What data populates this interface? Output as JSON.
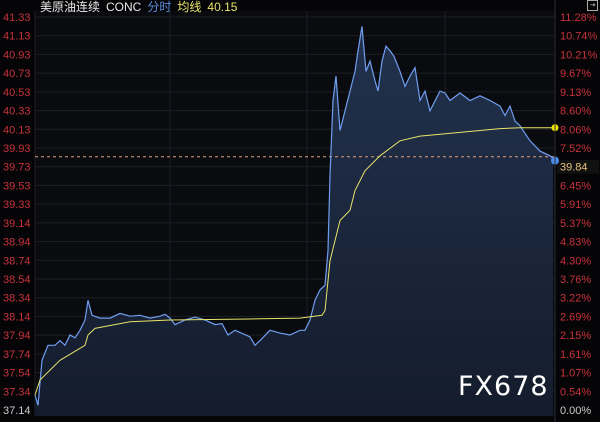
{
  "header": {
    "name": "美原油连续",
    "code": "CONC",
    "mode": "分时",
    "avg_label": "均线",
    "avg_value": "40.15"
  },
  "watermark": "FX678",
  "colors": {
    "price_line": "#6f9ef0",
    "avg_line": "#e8e36a",
    "axis_red": "#c8323c",
    "last_price": "#e6c27a",
    "ref_line": "#e0a080"
  },
  "chart_data": {
    "type": "line",
    "title": "",
    "xlabel": "",
    "ylabel": "",
    "ylim": [
      37.14,
      41.33
    ],
    "grid": true,
    "left_ticks": [
      "41.33",
      "41.13",
      "40.93",
      "40.73",
      "40.53",
      "40.33",
      "40.13",
      "39.93",
      "39.73",
      "39.53",
      "39.33",
      "39.14",
      "38.94",
      "38.74",
      "38.54",
      "38.34",
      "38.14",
      "37.94",
      "37.74",
      "37.54",
      "37.34",
      "37.14"
    ],
    "right_ticks": [
      "11.28%",
      "10.74%",
      "10.21%",
      "9.67%",
      "9.13%",
      "8.60%",
      "8.06%",
      "7.52%",
      "39.84",
      "6.45%",
      "5.91%",
      "5.37%",
      "4.83%",
      "4.30%",
      "3.76%",
      "3.22%",
      "2.69%",
      "2.15%",
      "1.61%",
      "1.07%",
      "0.54%",
      "0.00%"
    ],
    "last_price": 39.84,
    "x_range": [
      0,
      520
    ],
    "series": [
      {
        "key": "price",
        "points": [
          [
            0,
            37.3
          ],
          [
            3,
            37.19
          ],
          [
            7,
            37.67
          ],
          [
            13,
            37.83
          ],
          [
            20,
            37.83
          ],
          [
            25,
            37.88
          ],
          [
            30,
            37.83
          ],
          [
            35,
            37.94
          ],
          [
            40,
            37.91
          ],
          [
            45,
            37.99
          ],
          [
            50,
            38.1
          ],
          [
            53,
            38.31
          ],
          [
            57,
            38.15
          ],
          [
            65,
            38.12
          ],
          [
            75,
            38.12
          ],
          [
            85,
            38.17
          ],
          [
            95,
            38.14
          ],
          [
            105,
            38.15
          ],
          [
            115,
            38.12
          ],
          [
            125,
            38.14
          ],
          [
            130,
            38.16
          ],
          [
            135,
            38.12
          ],
          [
            140,
            38.05
          ],
          [
            150,
            38.1
          ],
          [
            160,
            38.13
          ],
          [
            170,
            38.1
          ],
          [
            180,
            38.05
          ],
          [
            187,
            38.06
          ],
          [
            193,
            37.94
          ],
          [
            200,
            37.99
          ],
          [
            215,
            37.92
          ],
          [
            220,
            37.83
          ],
          [
            225,
            37.88
          ],
          [
            235,
            37.99
          ],
          [
            245,
            37.96
          ],
          [
            255,
            37.94
          ],
          [
            265,
            37.99
          ],
          [
            270,
            37.99
          ],
          [
            275,
            38.1
          ],
          [
            280,
            38.31
          ],
          [
            285,
            38.42
          ],
          [
            290,
            38.47
          ],
          [
            293,
            38.84
          ],
          [
            295,
            39.64
          ],
          [
            298,
            40.44
          ],
          [
            301,
            40.7
          ],
          [
            305,
            40.12
          ],
          [
            310,
            40.33
          ],
          [
            315,
            40.54
          ],
          [
            320,
            40.75
          ],
          [
            323,
            40.97
          ],
          [
            327,
            41.23
          ],
          [
            331,
            40.75
          ],
          [
            335,
            40.86
          ],
          [
            340,
            40.65
          ],
          [
            343,
            40.54
          ],
          [
            347,
            40.86
          ],
          [
            351,
            41.02
          ],
          [
            355,
            40.97
          ],
          [
            359,
            40.91
          ],
          [
            365,
            40.75
          ],
          [
            370,
            40.59
          ],
          [
            375,
            40.7
          ],
          [
            380,
            40.79
          ],
          [
            385,
            40.44
          ],
          [
            390,
            40.54
          ],
          [
            395,
            40.33
          ],
          [
            405,
            40.54
          ],
          [
            410,
            40.52
          ],
          [
            415,
            40.44
          ],
          [
            425,
            40.52
          ],
          [
            435,
            40.44
          ],
          [
            445,
            40.49
          ],
          [
            455,
            40.44
          ],
          [
            465,
            40.38
          ],
          [
            470,
            40.28
          ],
          [
            475,
            40.38
          ],
          [
            480,
            40.22
          ],
          [
            485,
            40.17
          ],
          [
            495,
            40.01
          ],
          [
            505,
            39.9
          ],
          [
            515,
            39.85
          ],
          [
            518,
            39.82
          ]
        ]
      },
      {
        "key": "average",
        "points": [
          [
            0,
            37.3
          ],
          [
            5,
            37.46
          ],
          [
            25,
            37.67
          ],
          [
            50,
            37.83
          ],
          [
            53,
            37.94
          ],
          [
            60,
            38.01
          ],
          [
            95,
            38.08
          ],
          [
            135,
            38.1
          ],
          [
            215,
            38.11
          ],
          [
            265,
            38.12
          ],
          [
            287,
            38.15
          ],
          [
            290,
            38.2
          ],
          [
            295,
            38.73
          ],
          [
            305,
            39.16
          ],
          [
            315,
            39.27
          ],
          [
            320,
            39.48
          ],
          [
            330,
            39.69
          ],
          [
            345,
            39.85
          ],
          [
            365,
            40.01
          ],
          [
            385,
            40.06
          ],
          [
            425,
            40.1
          ],
          [
            465,
            40.14
          ],
          [
            485,
            40.15
          ],
          [
            520,
            40.15
          ]
        ]
      }
    ]
  }
}
